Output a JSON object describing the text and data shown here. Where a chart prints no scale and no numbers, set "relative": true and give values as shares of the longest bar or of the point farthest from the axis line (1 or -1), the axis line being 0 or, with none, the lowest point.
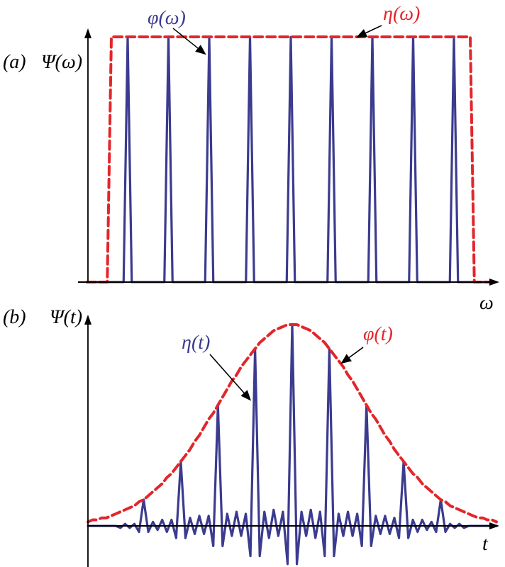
{
  "chart_data": [
    {
      "type": "line",
      "title": "(a)",
      "ylabel": "Ψ(ω)",
      "xlabel": "ω",
      "relative": true,
      "categories": [
        null,
        null,
        null,
        null,
        null,
        null,
        null,
        null,
        null,
        null,
        null,
        null,
        null,
        null,
        null,
        null,
        null,
        null,
        null,
        null,
        null,
        null,
        null,
        null,
        null,
        null,
        null,
        null,
        null,
        null,
        null,
        null,
        null,
        null,
        null,
        null,
        null,
        null,
        null,
        null,
        null,
        null,
        null,
        null,
        null,
        null,
        null,
        null,
        null,
        null,
        null,
        null,
        null,
        null,
        null,
        null,
        null,
        null,
        null,
        null,
        null,
        null,
        null,
        null,
        null,
        null,
        null,
        null,
        null,
        null,
        null,
        null,
        null,
        null,
        null,
        null,
        null,
        null,
        null,
        null,
        null,
        null,
        null,
        null,
        null,
        null,
        null,
        null,
        null,
        null,
        null,
        null,
        null,
        null,
        null,
        null,
        null,
        null,
        null,
        null,
        null
      ],
      "series": [
        {
          "name": "φ(ω)",
          "color": "#3b3b8f",
          "values": [
            0,
            0,
            0,
            0,
            0,
            0,
            0,
            0,
            0,
            0,
            1,
            0,
            0,
            0,
            0,
            0,
            0,
            0,
            0,
            0,
            1,
            0,
            0,
            0,
            0,
            0,
            0,
            0,
            0,
            0,
            1,
            0,
            0,
            0,
            0,
            0,
            0,
            0,
            0,
            0,
            1,
            0,
            0,
            0,
            0,
            0,
            0,
            0,
            0,
            0,
            1,
            0,
            0,
            0,
            0,
            0,
            0,
            0,
            0,
            0,
            1,
            0,
            0,
            0,
            0,
            0,
            0,
            0,
            0,
            0,
            1,
            0,
            0,
            0,
            0,
            0,
            0,
            0,
            0,
            0,
            1,
            0,
            0,
            0,
            0,
            0,
            0,
            0,
            0,
            0,
            1,
            0,
            0,
            0,
            0,
            0,
            0,
            0,
            0,
            0,
            0
          ]
        },
        {
          "name": "η(ω)",
          "color": "#e3262b",
          "line_style": "dashed",
          "values": [
            0,
            0,
            0,
            0,
            0,
            0,
            1,
            1,
            1,
            1,
            1,
            1,
            1,
            1,
            1,
            1,
            1,
            1,
            1,
            1,
            1,
            1,
            1,
            1,
            1,
            1,
            1,
            1,
            1,
            1,
            1,
            1,
            1,
            1,
            1,
            1,
            1,
            1,
            1,
            1,
            1,
            1,
            1,
            1,
            1,
            1,
            1,
            1,
            1,
            1,
            1,
            1,
            1,
            1,
            1,
            1,
            1,
            1,
            1,
            1,
            1,
            1,
            1,
            1,
            1,
            1,
            1,
            1,
            1,
            1,
            1,
            1,
            1,
            1,
            1,
            1,
            1,
            1,
            1,
            1,
            1,
            1,
            1,
            1,
            1,
            1,
            1,
            1,
            1,
            1,
            1,
            1,
            1,
            1,
            1,
            0,
            0,
            0,
            0,
            0,
            0
          ]
        }
      ]
    },
    {
      "type": "line",
      "title": "(b)",
      "ylabel": "Ψ(t)",
      "xlabel": "t",
      "relative": true,
      "categories": [
        null,
        null,
        null,
        null,
        null,
        null,
        null,
        null,
        null,
        null,
        null,
        null,
        null,
        null,
        null,
        null,
        null,
        null,
        null,
        null,
        null,
        null,
        null,
        null,
        null,
        null,
        null,
        null,
        null,
        null,
        null,
        null,
        null,
        null,
        null,
        null,
        null,
        null,
        null,
        null,
        null,
        null,
        null,
        null,
        null,
        null,
        null,
        null,
        null,
        null,
        null,
        null,
        null,
        null,
        null,
        null,
        null,
        null,
        null,
        null,
        null,
        null,
        null,
        null,
        null,
        null,
        null,
        null,
        null,
        null,
        null,
        null,
        null,
        null,
        null,
        null,
        null,
        null,
        null,
        null,
        null,
        null,
        null,
        null,
        null,
        null,
        null,
        null,
        null
      ],
      "series": [
        {
          "name": "η(t)",
          "color": "#3b3b8f",
          "values": [
            0,
            0,
            0,
            0,
            0,
            0,
            0,
            -0.01,
            0.01,
            -0.01,
            0.01,
            -0.03,
            0.13,
            -0.03,
            0.02,
            -0.02,
            0.03,
            -0.03,
            0.03,
            -0.06,
            0.32,
            -0.06,
            0.04,
            -0.04,
            0.05,
            -0.04,
            0.05,
            -0.1,
            0.6,
            -0.1,
            0.06,
            -0.05,
            0.07,
            -0.05,
            0.06,
            -0.15,
            0.88,
            -0.15,
            0.07,
            -0.06,
            0.08,
            -0.05,
            0.07,
            -0.19,
            1,
            -0.19,
            0.07,
            -0.05,
            0.08,
            -0.06,
            0.07,
            -0.15,
            0.88,
            -0.15,
            0.06,
            -0.05,
            0.07,
            -0.05,
            0.06,
            -0.1,
            0.6,
            -0.1,
            0.05,
            -0.04,
            0.05,
            -0.04,
            0.04,
            -0.06,
            0.32,
            -0.06,
            0.03,
            -0.03,
            0.03,
            -0.02,
            0.02,
            -0.03,
            0.13,
            -0.03,
            0.01,
            -0.01,
            0.01,
            -0.01,
            0,
            0,
            0,
            0,
            0,
            0,
            0
          ]
        },
        {
          "name": "φ(t)",
          "color": "#e3262b",
          "line_style": "dashed",
          "values": [
            0.02,
            0.03,
            0.03,
            0.04,
            0.04,
            0.05,
            0.06,
            0.07,
            0.08,
            0.09,
            0.1,
            0.12,
            0.13,
            0.15,
            0.17,
            0.19,
            0.21,
            0.24,
            0.26,
            0.29,
            0.32,
            0.35,
            0.38,
            0.42,
            0.45,
            0.49,
            0.53,
            0.56,
            0.6,
            0.64,
            0.68,
            0.72,
            0.75,
            0.79,
            0.82,
            0.85,
            0.88,
            0.91,
            0.93,
            0.95,
            0.97,
            0.98,
            0.99,
            1,
            1,
            1,
            0.99,
            0.98,
            0.97,
            0.95,
            0.93,
            0.91,
            0.88,
            0.85,
            0.82,
            0.79,
            0.75,
            0.72,
            0.68,
            0.64,
            0.6,
            0.56,
            0.53,
            0.49,
            0.45,
            0.42,
            0.38,
            0.35,
            0.32,
            0.29,
            0.26,
            0.24,
            0.21,
            0.19,
            0.17,
            0.15,
            0.13,
            0.12,
            0.1,
            0.09,
            0.08,
            0.07,
            0.06,
            0.05,
            0.04,
            0.04,
            0.03,
            0.03,
            0.02
          ]
        }
      ]
    }
  ]
}
